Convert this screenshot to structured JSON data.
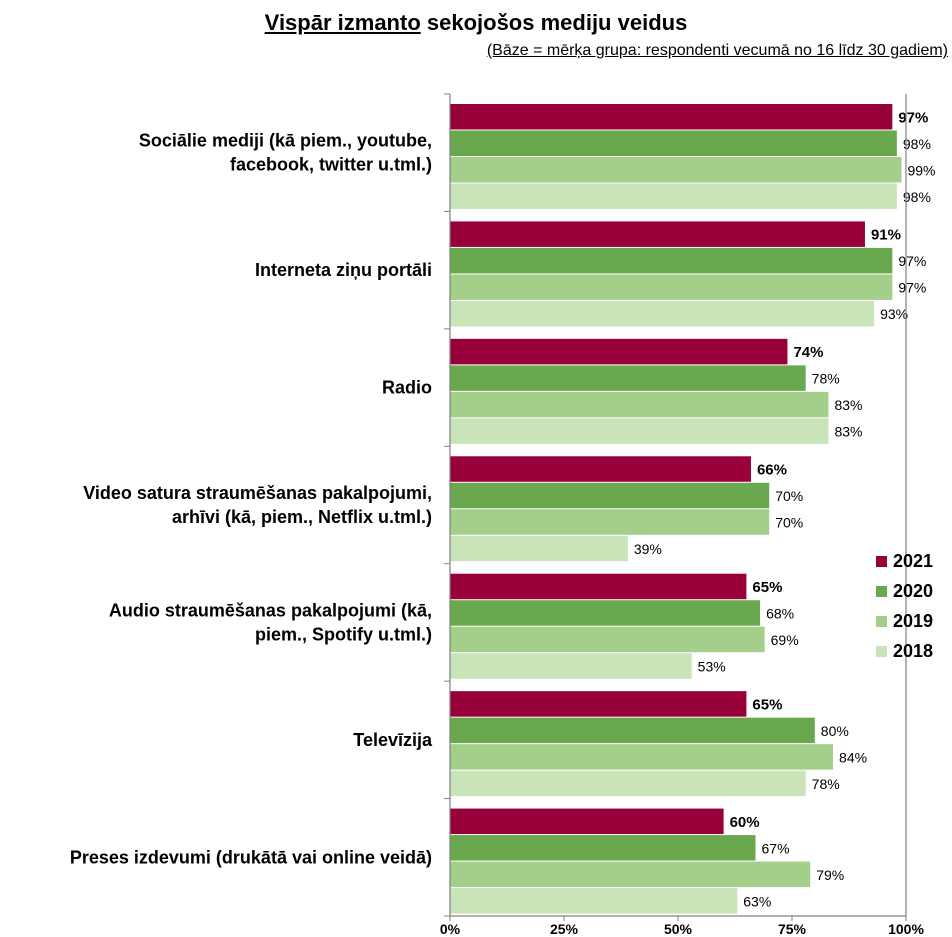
{
  "title": {
    "underlined": "Vispār izmanto",
    "rest": " sekojošos mediju veidus",
    "subtitle": "(Bāze = mērķa grupa: respondenti vecumā no 16 līdz 30 gadiem)"
  },
  "colors": {
    "2021": "#98003a",
    "2020": "#6aa84f",
    "2019": "#a3cf8a",
    "2018": "#c9e4b8"
  },
  "chart_data": {
    "type": "bar",
    "orientation": "horizontal",
    "title": "Vispār izmanto sekojošos mediju veidus",
    "subtitle": "(Bāze = mērķa grupa: respondenti vecumā no 16 līdz 30 gadiem)",
    "categories": [
      [
        "Sociālie mediji (kā piem., youtube,",
        "facebook, twitter u.tml.)"
      ],
      [
        "Interneta ziņu portāli"
      ],
      [
        "Radio"
      ],
      [
        "Video satura straumēšanas pakalpojumi,",
        "arhīvi (kā, piem., Netflix u.tml.)"
      ],
      [
        "Audio straumēšanas pakalpojumi (kā,",
        "piem., Spotify u.tml.)"
      ],
      [
        "Televīzija"
      ],
      [
        "Preses izdevumi (drukātā vai online veidā)"
      ]
    ],
    "series": [
      {
        "name": "2021",
        "values": [
          97,
          91,
          74,
          66,
          65,
          65,
          60
        ]
      },
      {
        "name": "2020",
        "values": [
          98,
          97,
          78,
          70,
          68,
          80,
          67
        ]
      },
      {
        "name": "2019",
        "values": [
          99,
          97,
          83,
          70,
          69,
          84,
          79
        ]
      },
      {
        "name": "2018",
        "values": [
          98,
          93,
          83,
          39,
          53,
          78,
          63
        ]
      }
    ],
    "value_suffix": "%",
    "xlim": [
      0,
      100
    ],
    "xticks": [
      "0%",
      "25%",
      "50%",
      "75%",
      "100%"
    ],
    "legend": {
      "position": "right",
      "order": [
        "2021",
        "2020",
        "2019",
        "2018"
      ]
    },
    "grid": false
  }
}
